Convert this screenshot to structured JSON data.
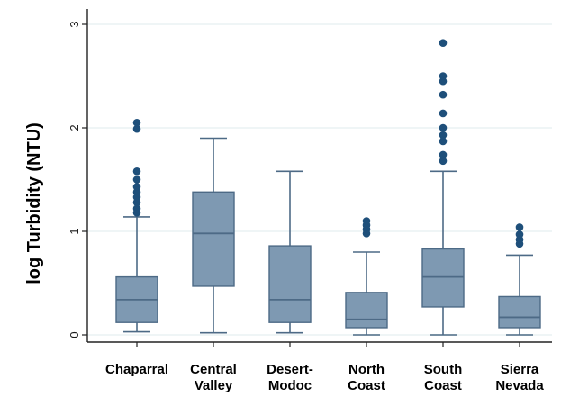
{
  "chart_data": {
    "type": "box",
    "title": "",
    "xlabel": "",
    "ylabel": "log Turbidity (NTU)",
    "ylim": [
      -0.05,
      3.1
    ],
    "yticks": [
      "0",
      "1",
      "2",
      "3"
    ],
    "grid": "horizontal",
    "legend": "none",
    "colors": {
      "plot_background": "#ffffff",
      "gridline": "#eaf2f3",
      "box_fill": "#7e99b2",
      "box_stroke": "#4d6a86",
      "outlier": "#1e4f7a",
      "axis": "#222222"
    },
    "categories": [
      [
        "Chaparral"
      ],
      [
        "Central",
        "Valley"
      ],
      [
        "Desert-",
        "Modoc"
      ],
      [
        "North",
        "Coast"
      ],
      [
        "South",
        "Coast"
      ],
      [
        "Sierra",
        "Nevada"
      ]
    ],
    "boxes": [
      {
        "whisker_low": 0.03,
        "q1": 0.12,
        "median": 0.34,
        "q3": 0.56,
        "whisker_high": 1.14,
        "outliers": [
          1.18,
          1.22,
          1.28,
          1.33,
          1.38,
          1.43,
          1.5,
          1.58,
          1.99,
          2.05
        ]
      },
      {
        "whisker_low": 0.02,
        "q1": 0.47,
        "median": 0.98,
        "q3": 1.38,
        "whisker_high": 1.9,
        "outliers": []
      },
      {
        "whisker_low": 0.02,
        "q1": 0.12,
        "median": 0.34,
        "q3": 0.86,
        "whisker_high": 1.58,
        "outliers": []
      },
      {
        "whisker_low": 0.0,
        "q1": 0.07,
        "median": 0.15,
        "q3": 0.41,
        "whisker_high": 0.8,
        "outliers": [
          0.98,
          1.02,
          1.06,
          1.1
        ]
      },
      {
        "whisker_low": 0.0,
        "q1": 0.27,
        "median": 0.56,
        "q3": 0.83,
        "whisker_high": 1.58,
        "outliers": [
          1.68,
          1.74,
          1.87,
          1.93,
          2.0,
          2.14,
          2.32,
          2.45,
          2.5,
          2.82
        ]
      },
      {
        "whisker_low": 0.0,
        "q1": 0.07,
        "median": 0.17,
        "q3": 0.37,
        "whisker_high": 0.77,
        "outliers": [
          0.88,
          0.92,
          0.97,
          1.04
        ]
      }
    ]
  }
}
